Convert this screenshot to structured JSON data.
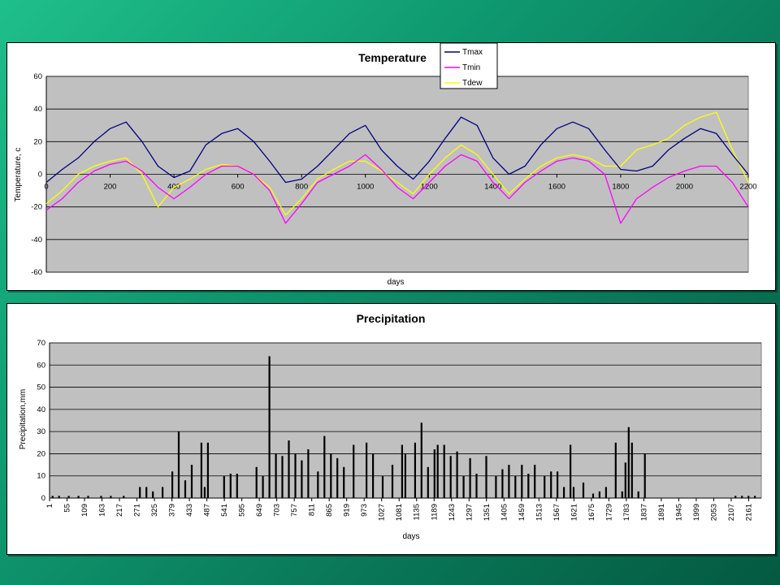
{
  "chart_data": [
    {
      "type": "line",
      "title": "Temperature",
      "xlabel": "days",
      "ylabel": "Temperature, c",
      "xlim": [
        0,
        2200
      ],
      "ylim": [
        -60,
        60
      ],
      "x_ticks": [
        0,
        200,
        400,
        600,
        800,
        1000,
        1200,
        1400,
        1600,
        1800,
        2000,
        2200
      ],
      "y_ticks": [
        -60,
        -40,
        -20,
        0,
        20,
        40,
        60
      ],
      "grid": true,
      "plot_background": "#c0c0c0",
      "legend": "top-right",
      "series": [
        {
          "name": "Tmax",
          "color": "#000080",
          "x": [
            0,
            50,
            100,
            150,
            200,
            250,
            300,
            350,
            400,
            450,
            500,
            550,
            600,
            650,
            700,
            750,
            800,
            850,
            900,
            950,
            1000,
            1050,
            1100,
            1150,
            1200,
            1250,
            1300,
            1350,
            1400,
            1450,
            1500,
            1550,
            1600,
            1650,
            1700,
            1750,
            1800,
            1850,
            1900,
            1950,
            2000,
            2050,
            2100,
            2150,
            2200
          ],
          "values": [
            -5,
            3,
            10,
            20,
            28,
            32,
            20,
            5,
            -2,
            2,
            18,
            25,
            28,
            20,
            8,
            -5,
            -3,
            5,
            15,
            25,
            30,
            15,
            5,
            -3,
            8,
            22,
            35,
            30,
            10,
            0,
            5,
            18,
            28,
            32,
            28,
            15,
            3,
            2,
            5,
            15,
            22,
            28,
            25,
            12,
            0
          ]
        },
        {
          "name": "Tmin",
          "color": "#ff00ff",
          "x": [
            0,
            50,
            100,
            150,
            200,
            250,
            300,
            350,
            400,
            450,
            500,
            550,
            600,
            650,
            700,
            750,
            800,
            850,
            900,
            950,
            1000,
            1050,
            1100,
            1150,
            1200,
            1250,
            1300,
            1350,
            1400,
            1450,
            1500,
            1550,
            1600,
            1650,
            1700,
            1750,
            1800,
            1850,
            1900,
            1950,
            2000,
            2050,
            2100,
            2150,
            2200
          ],
          "values": [
            -22,
            -15,
            -5,
            2,
            6,
            8,
            2,
            -8,
            -15,
            -8,
            0,
            5,
            5,
            0,
            -10,
            -30,
            -18,
            -5,
            0,
            5,
            12,
            3,
            -8,
            -15,
            -5,
            5,
            12,
            8,
            -5,
            -15,
            -5,
            2,
            8,
            10,
            8,
            0,
            -30,
            -15,
            -8,
            -2,
            2,
            5,
            5,
            -5,
            -20
          ]
        },
        {
          "name": "Tdew",
          "color": "#ffff00",
          "x": [
            0,
            50,
            100,
            150,
            200,
            250,
            300,
            350,
            400,
            450,
            500,
            550,
            600,
            650,
            700,
            750,
            800,
            850,
            900,
            950,
            1000,
            1050,
            1100,
            1150,
            1200,
            1250,
            1300,
            1350,
            1400,
            1450,
            1500,
            1550,
            1600,
            1650,
            1700,
            1750,
            1800,
            1850,
            1900,
            1950,
            2000,
            2050,
            2100,
            2150,
            2200
          ],
          "values": [
            -18,
            -10,
            0,
            5,
            8,
            10,
            0,
            -20,
            -8,
            -3,
            3,
            6,
            5,
            0,
            -8,
            -25,
            -15,
            -3,
            3,
            8,
            8,
            2,
            -5,
            -12,
            0,
            10,
            18,
            12,
            0,
            -12,
            -3,
            5,
            10,
            12,
            10,
            5,
            5,
            15,
            18,
            22,
            30,
            35,
            38,
            15,
            -5
          ]
        }
      ]
    },
    {
      "type": "bar",
      "title": "Precipitation",
      "xlabel": "days",
      "ylabel": "Precipitation,mm",
      "ylim": [
        0,
        70
      ],
      "y_ticks": [
        0,
        10,
        20,
        30,
        40,
        50,
        60,
        70
      ],
      "x_range": [
        1,
        2200
      ],
      "grid": true,
      "plot_background": "#c0c0c0",
      "bar_color": "#000000",
      "categories": [
        "1",
        "55",
        "109",
        "163",
        "217",
        "271",
        "325",
        "379",
        "433",
        "487",
        "541",
        "595",
        "649",
        "703",
        "757",
        "811",
        "865",
        "919",
        "973",
        "1027",
        "1081",
        "1135",
        "1189",
        "1243",
        "1297",
        "1351",
        "1405",
        "1459",
        "1513",
        "1567",
        "1621",
        "1675",
        "1729",
        "1783",
        "1837",
        "1891",
        "1945",
        "1999",
        "2053",
        "2107",
        "2161"
      ],
      "bars": {
        "x": [
          10,
          30,
          60,
          90,
          120,
          160,
          190,
          230,
          280,
          300,
          320,
          350,
          380,
          400,
          420,
          440,
          470,
          480,
          490,
          540,
          560,
          580,
          640,
          660,
          680,
          700,
          720,
          740,
          760,
          780,
          800,
          830,
          850,
          870,
          890,
          910,
          940,
          980,
          1000,
          1030,
          1060,
          1090,
          1100,
          1130,
          1150,
          1170,
          1190,
          1200,
          1220,
          1240,
          1260,
          1280,
          1300,
          1320,
          1350,
          1380,
          1400,
          1420,
          1440,
          1460,
          1480,
          1500,
          1530,
          1550,
          1570,
          1590,
          1610,
          1620,
          1650,
          1680,
          1700,
          1720,
          1750,
          1770,
          1780,
          1790,
          1800,
          1820,
          1840,
          2120,
          2140,
          2160,
          2180
        ],
        "values": [
          1,
          1,
          1,
          1,
          1,
          1,
          1,
          1,
          5,
          5,
          3,
          5,
          12,
          30,
          8,
          15,
          25,
          5,
          25,
          10,
          11,
          11,
          14,
          10,
          64,
          20,
          19,
          26,
          20,
          17,
          22,
          12,
          28,
          20,
          18,
          14,
          24,
          25,
          20,
          10,
          15,
          24,
          20,
          25,
          34,
          14,
          22,
          24,
          24,
          19,
          21,
          10,
          18,
          11,
          19,
          10,
          13,
          15,
          10,
          15,
          11,
          15,
          10,
          12,
          12,
          5,
          24,
          5,
          7,
          2,
          3,
          5,
          25,
          3,
          16,
          32,
          25,
          3,
          20,
          1,
          1,
          1,
          1
        ]
      }
    }
  ]
}
